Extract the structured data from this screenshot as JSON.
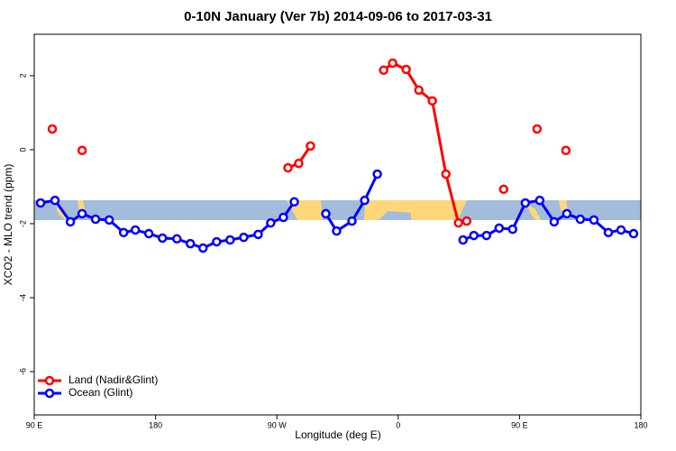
{
  "chart_data": {
    "type": "line",
    "title": "0-10N January (Ver 7b)   2014-09-06 to 2017-03-31",
    "x_label": "Longitude (deg E)",
    "y_label": "XCO2 - MLO trend (ppm)",
    "xlim": [
      90,
      540
    ],
    "xticks": [
      {
        "value": 90,
        "label": "90 E"
      },
      180,
      {
        "value": 270,
        "label": "90 W"
      },
      {
        "value": 360,
        "label": "0"
      },
      {
        "value": 450,
        "label": "90 E"
      },
      {
        "value": 540,
        "label": "180"
      }
    ],
    "ylim": [
      -7.17,
      3.12
    ],
    "yticks": [
      2,
      0,
      -2,
      -4,
      -6
    ],
    "legend": "bottom-left",
    "series": [
      {
        "name": "Land (Nadir&Glint)",
        "color": "#ff0000",
        "x": [
          103.4,
          null,
          125.5,
          null,
          278.2,
          286.2,
          294.9,
          null,
          349.2,
          355.9,
          365.9,
          375.3,
          385.3,
          395.4,
          404.7,
          null,
          410.8,
          null,
          438.2,
          null,
          463.0,
          null,
          484.4
        ],
        "values": [
          0.56,
          null,
          -0.02,
          null,
          -0.49,
          -0.37,
          0.1,
          null,
          2.15,
          2.34,
          2.17,
          1.61,
          1.32,
          -0.66,
          -1.98,
          null,
          -1.93,
          null,
          -1.07,
          null,
          0.56,
          null,
          -0.02
        ]
      },
      {
        "name": "Ocean (Glint)",
        "color": "#0000ff",
        "x": [
          94.7,
          105.4,
          116.8,
          125.5,
          135.5,
          145.6,
          156.3,
          165.0,
          175.0,
          185.1,
          195.8,
          205.8,
          215.2,
          225.3,
          235.3,
          245.4,
          256.1,
          265.4,
          274.8,
          282.9,
          null,
          306.3,
          314.3,
          325.7,
          335.1,
          344.5,
          null,
          408.1,
          416.1,
          425.5,
          434.9,
          444.9,
          454.3,
          465.0,
          475.7,
          485.1,
          495.1,
          505.2,
          515.9,
          525.3,
          534.6
        ],
        "values": [
          -1.44,
          -1.37,
          -1.95,
          -1.73,
          -1.88,
          -1.9,
          -2.24,
          -2.17,
          -2.27,
          -2.39,
          -2.41,
          -2.54,
          -2.66,
          -2.49,
          -2.44,
          -2.37,
          -2.29,
          -1.98,
          -1.83,
          -1.41,
          null,
          -1.73,
          -2.2,
          -1.93,
          -1.37,
          -0.66,
          null,
          -2.44,
          -2.32,
          -2.32,
          -2.12,
          -2.15,
          -1.44,
          -1.37,
          -1.95,
          -1.73,
          -1.88,
          -1.9,
          -2.24,
          -2.17,
          -2.27
        ]
      }
    ]
  }
}
